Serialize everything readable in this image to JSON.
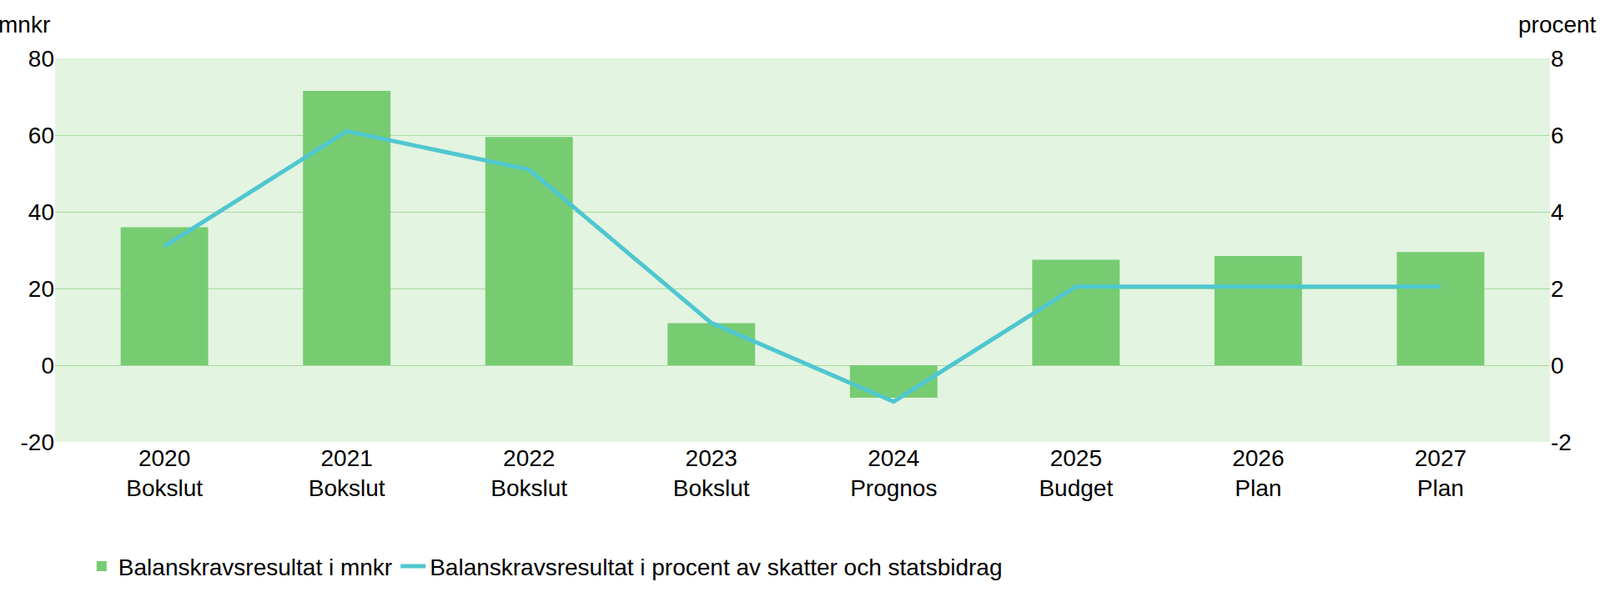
{
  "chart_data": {
    "type": "bar",
    "y_label": "mnkr",
    "y2_label": "procent",
    "categories": [
      "2020 Bokslut",
      "2021 Bokslut",
      "2022 Bokslut",
      "2023 Bokslut",
      "2024 Prognos",
      "2025 Budget",
      "2026 Plan",
      "2027 Plan"
    ],
    "series": [
      {
        "name": "Balanskravsresultat i mnkr",
        "type": "bar",
        "color": "#77cc72",
        "values": [
          36,
          71.5,
          59.5,
          11,
          -8.5,
          27.5,
          28.5,
          29.5
        ]
      },
      {
        "name": "Balanskravsresultat i procent av skatter och statsbidrag",
        "type": "line",
        "axis": "y2",
        "color": "#4fc7d0",
        "values": [
          3.1,
          6.1,
          5.1,
          1.1,
          -0.95,
          2.05,
          2.05,
          2.05
        ]
      }
    ],
    "ylim": [
      -20,
      80
    ],
    "yticks": [
      -20,
      0,
      20,
      40,
      60,
      80
    ],
    "y2lim": [
      -2,
      8
    ],
    "y2ticks": [
      -2,
      0,
      2,
      4,
      6,
      8
    ],
    "grid": true,
    "legend": "bottom"
  }
}
